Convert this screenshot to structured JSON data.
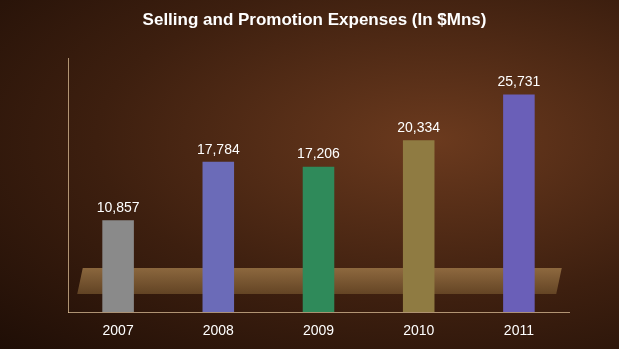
{
  "chart_data": {
    "type": "bar",
    "title": "Selling and Promotion Expenses (In $Mns)",
    "categories": [
      "2007",
      "2008",
      "2009",
      "2010",
      "2011"
    ],
    "values": [
      10857,
      17784,
      17206,
      20334,
      25731
    ],
    "value_labels": [
      "10,857",
      "17,784",
      "17,206",
      "20,334",
      "25,731"
    ],
    "colors": [
      "#8a8a8a",
      "#6b6bb8",
      "#2f8a5a",
      "#8f7b42",
      "#6a5fb8"
    ],
    "ylim": [
      0,
      30000
    ],
    "data_labels": true,
    "tick_labels": "x",
    "grid": false
  }
}
